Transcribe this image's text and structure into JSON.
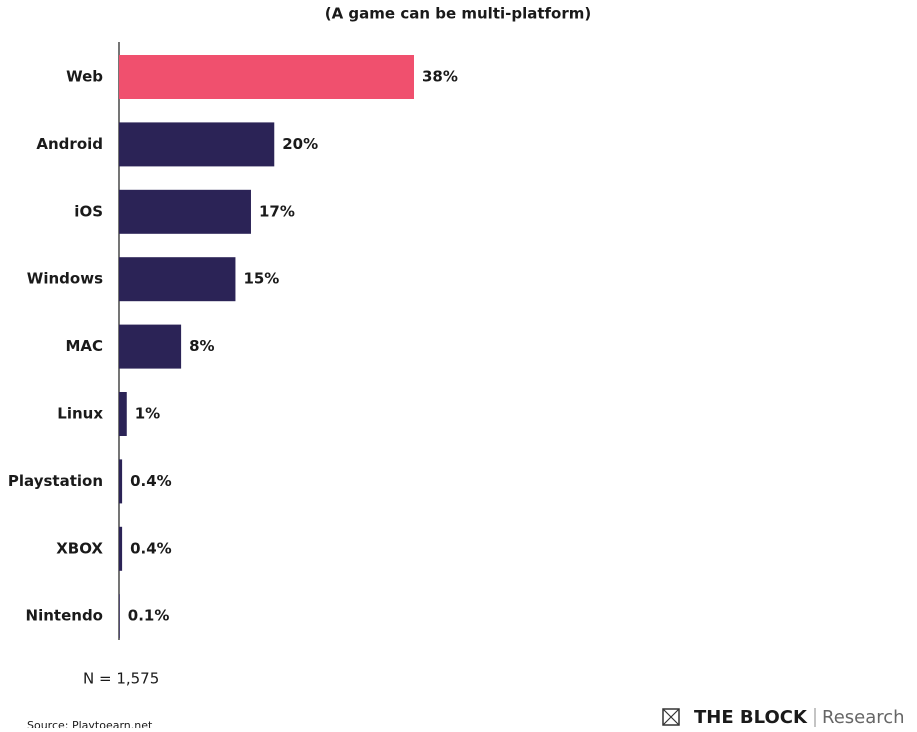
{
  "chart_data": {
    "type": "bar",
    "orientation": "horizontal",
    "subtitle": "(A game can be multi-platform)",
    "categories": [
      "Web",
      "Android",
      "iOS",
      "Windows",
      "MAC",
      "Linux",
      "Playstation",
      "XBOX",
      "Nintendo"
    ],
    "values": [
      38,
      20,
      17,
      15,
      8,
      1,
      0.4,
      0.4,
      0.1
    ],
    "value_labels": [
      "38%",
      "20%",
      "17%",
      "15%",
      "8%",
      "1%",
      "0.4%",
      "0.4%",
      "0.1%"
    ],
    "colors": [
      "#f0506e",
      "#2b2356",
      "#2b2356",
      "#2b2356",
      "#2b2356",
      "#2b2356",
      "#2b2356",
      "#2b2356",
      "#2b2356"
    ],
    "note": "N = 1,575",
    "source": "Source: Playtoearn.net",
    "brand": "THE BLOCK",
    "brand_suffix": "Research"
  }
}
